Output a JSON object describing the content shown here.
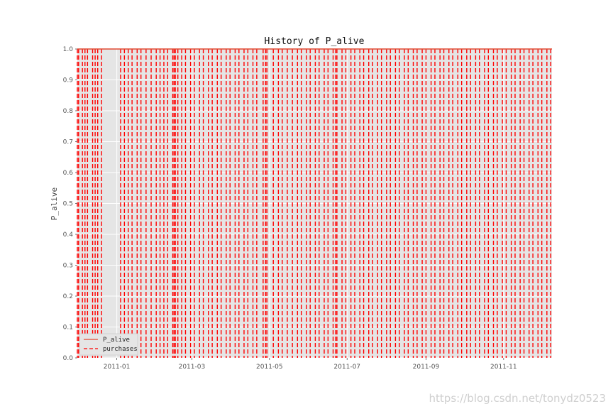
{
  "chart_data": {
    "type": "line",
    "title": "History of P_alive",
    "xlabel": "",
    "ylabel": "P_alive",
    "xlim": [
      "2010-12-01",
      "2011-12-09"
    ],
    "ylim": [
      0,
      1
    ],
    "grid": true,
    "legend_position": "lower-left",
    "x_tick_labels": [
      "2011-01",
      "2011-03",
      "2011-05",
      "2011-07",
      "2011-09",
      "2011-11"
    ],
    "y_tick_labels": [
      "0.0",
      "0.1",
      "0.2",
      "0.3",
      "0.4",
      "0.5",
      "0.6",
      "0.7",
      "0.8",
      "0.9",
      "1.0"
    ],
    "series": [
      {
        "name": "P_alive",
        "style": "solid",
        "color": "#e24a33",
        "x": [
          "2010-12-01",
          "2011-12-09"
        ],
        "y": [
          1.0,
          1.0
        ]
      },
      {
        "name": "purchases",
        "style": "dashed",
        "color": "#ff0000",
        "dates": [
          "2010-12-01",
          "2010-12-02",
          "2010-12-05",
          "2010-12-07",
          "2010-12-09",
          "2010-12-13",
          "2010-12-15",
          "2010-12-17",
          "2010-12-20",
          "2011-01-04",
          "2011-01-07",
          "2011-01-10",
          "2011-01-13",
          "2011-01-17",
          "2011-01-20",
          "2011-01-24",
          "2011-01-28",
          "2011-02-01",
          "2011-02-04",
          "2011-02-07",
          "2011-02-10",
          "2011-02-14",
          "2011-02-15",
          "2011-02-16",
          "2011-02-18",
          "2011-02-21",
          "2011-02-24",
          "2011-02-28",
          "2011-03-03",
          "2011-03-07",
          "2011-03-10",
          "2011-03-14",
          "2011-03-17",
          "2011-03-21",
          "2011-03-24",
          "2011-03-28",
          "2011-03-31",
          "2011-04-04",
          "2011-04-07",
          "2011-04-11",
          "2011-04-14",
          "2011-04-18",
          "2011-04-21",
          "2011-04-26",
          "2011-04-28",
          "2011-04-29",
          "2011-05-04",
          "2011-05-08",
          "2011-05-11",
          "2011-05-15",
          "2011-05-19",
          "2011-05-23",
          "2011-05-26",
          "2011-05-30",
          "2011-06-02",
          "2011-06-06",
          "2011-06-09",
          "2011-06-13",
          "2011-06-16",
          "2011-06-20",
          "2011-06-22",
          "2011-06-23",
          "2011-06-27",
          "2011-06-30",
          "2011-07-04",
          "2011-07-07",
          "2011-07-11",
          "2011-07-14",
          "2011-07-18",
          "2011-07-21",
          "2011-07-25",
          "2011-07-28",
          "2011-08-01",
          "2011-08-04",
          "2011-08-08",
          "2011-08-11",
          "2011-08-15",
          "2011-08-18",
          "2011-08-22",
          "2011-08-25",
          "2011-08-29",
          "2011-09-01",
          "2011-09-05",
          "2011-09-08",
          "2011-09-12",
          "2011-09-15",
          "2011-09-19",
          "2011-09-22",
          "2011-09-26",
          "2011-09-29",
          "2011-10-03",
          "2011-10-06",
          "2011-10-10",
          "2011-10-13",
          "2011-10-17",
          "2011-10-20",
          "2011-10-24",
          "2011-10-27",
          "2011-10-31",
          "2011-11-03",
          "2011-11-07",
          "2011-11-10",
          "2011-11-14",
          "2011-11-17",
          "2011-11-21",
          "2011-11-24",
          "2011-11-28",
          "2011-12-01",
          "2011-12-05",
          "2011-12-08"
        ]
      }
    ]
  },
  "watermark": "https://blog.csdn.net/tonydz0523"
}
